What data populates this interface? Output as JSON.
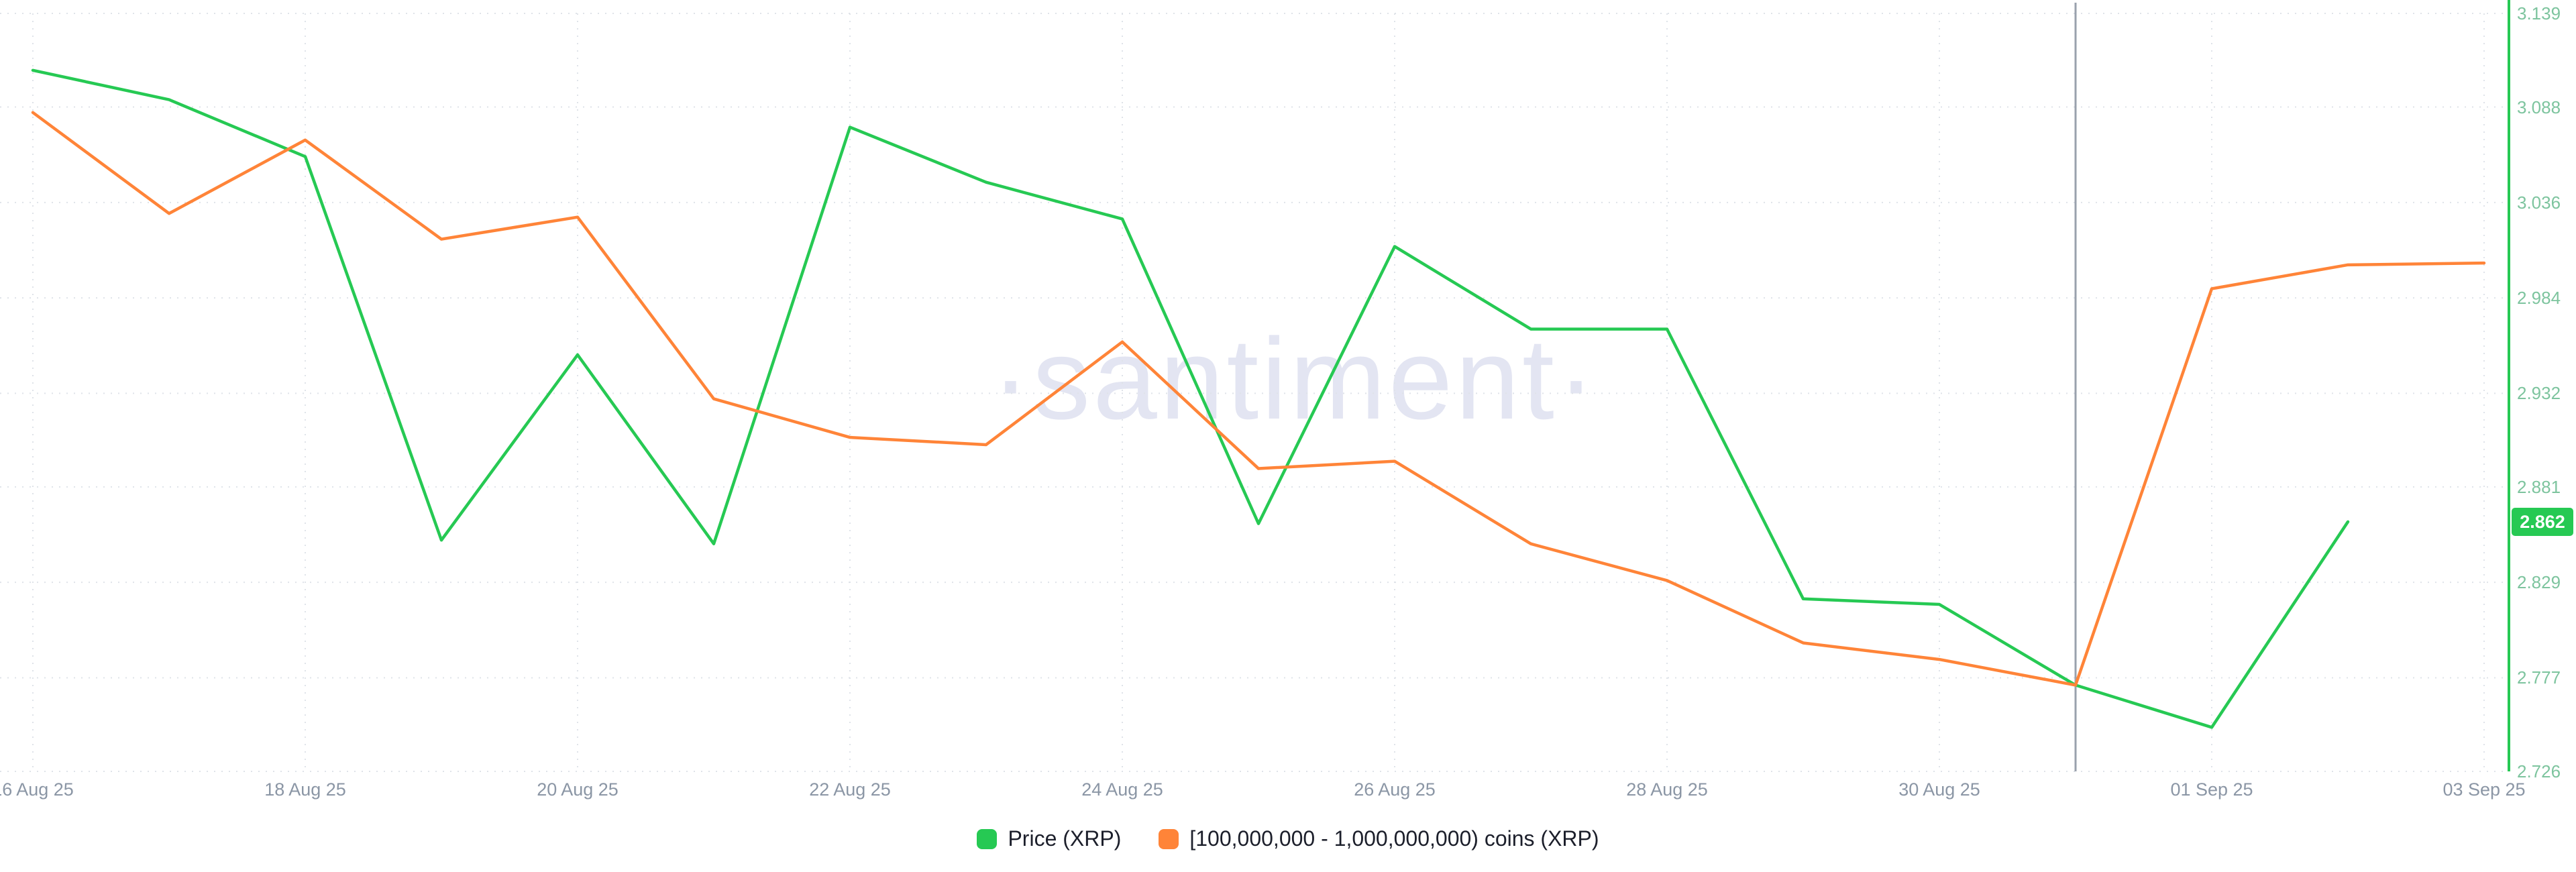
{
  "watermark": "·santiment·",
  "badge": {
    "value": "2.862",
    "color": "#26c953"
  },
  "axis": {
    "y_ticks": [
      "3.139",
      "3.088",
      "3.036",
      "2.984",
      "2.932",
      "2.881",
      "2.829",
      "2.777",
      "2.726"
    ],
    "x_ticks": [
      "16 Aug 25",
      "18 Aug 25",
      "20 Aug 25",
      "22 Aug 25",
      "24 Aug 25",
      "26 Aug 25",
      "28 Aug 25",
      "30 Aug 25",
      "01 Sep 25",
      "03 Sep 25"
    ],
    "y_label_color": "#7dc49e",
    "x_label_color": "#8b96a5"
  },
  "legend": [
    {
      "label": "Price (XRP)",
      "color": "#26c953"
    },
    {
      "label": "[100,000,000 - 1,000,000,000) coins (XRP)",
      "color": "#ff8438"
    }
  ],
  "chart_data": {
    "type": "line",
    "title": "",
    "x": [
      "16 Aug 25",
      "17 Aug 25",
      "18 Aug 25",
      "19 Aug 25",
      "20 Aug 25",
      "21 Aug 25",
      "22 Aug 25",
      "23 Aug 25",
      "24 Aug 25",
      "25 Aug 25",
      "26 Aug 25",
      "27 Aug 25",
      "28 Aug 25",
      "29 Aug 25",
      "30 Aug 25",
      "31 Aug 25",
      "01 Sep 25",
      "02 Sep 25",
      "03 Sep 25"
    ],
    "series": [
      {
        "name": "Price (XRP)",
        "color": "#26c953",
        "values": [
          3.108,
          3.092,
          3.061,
          2.852,
          2.953,
          2.85,
          3.077,
          3.047,
          3.027,
          2.861,
          3.012,
          2.967,
          2.967,
          2.82,
          2.817,
          2.773,
          2.75,
          2.862,
          null
        ]
      },
      {
        "name": "[100,000,000 - 1,000,000,000) coins (XRP)",
        "color": "#ff8438",
        "values": [
          3.085,
          3.03,
          3.07,
          3.016,
          3.028,
          2.929,
          2.908,
          2.904,
          2.96,
          2.891,
          2.895,
          2.85,
          2.83,
          2.796,
          2.787,
          2.773,
          2.989,
          3.002,
          3.003
        ]
      }
    ],
    "ylim": [
      2.726,
      3.139
    ],
    "y_tick_values": [
      3.139,
      3.088,
      3.036,
      2.984,
      2.932,
      2.881,
      2.829,
      2.777,
      2.726
    ],
    "x_tick_indices": [
      0,
      2,
      4,
      6,
      8,
      10,
      12,
      14,
      16,
      18
    ],
    "crosshair_x": "31 Aug 25",
    "crosshair_index": 15,
    "last_price_marker": 2.862,
    "grid": "dotted",
    "legend_position": "bottom",
    "y_axis_side": "right"
  }
}
